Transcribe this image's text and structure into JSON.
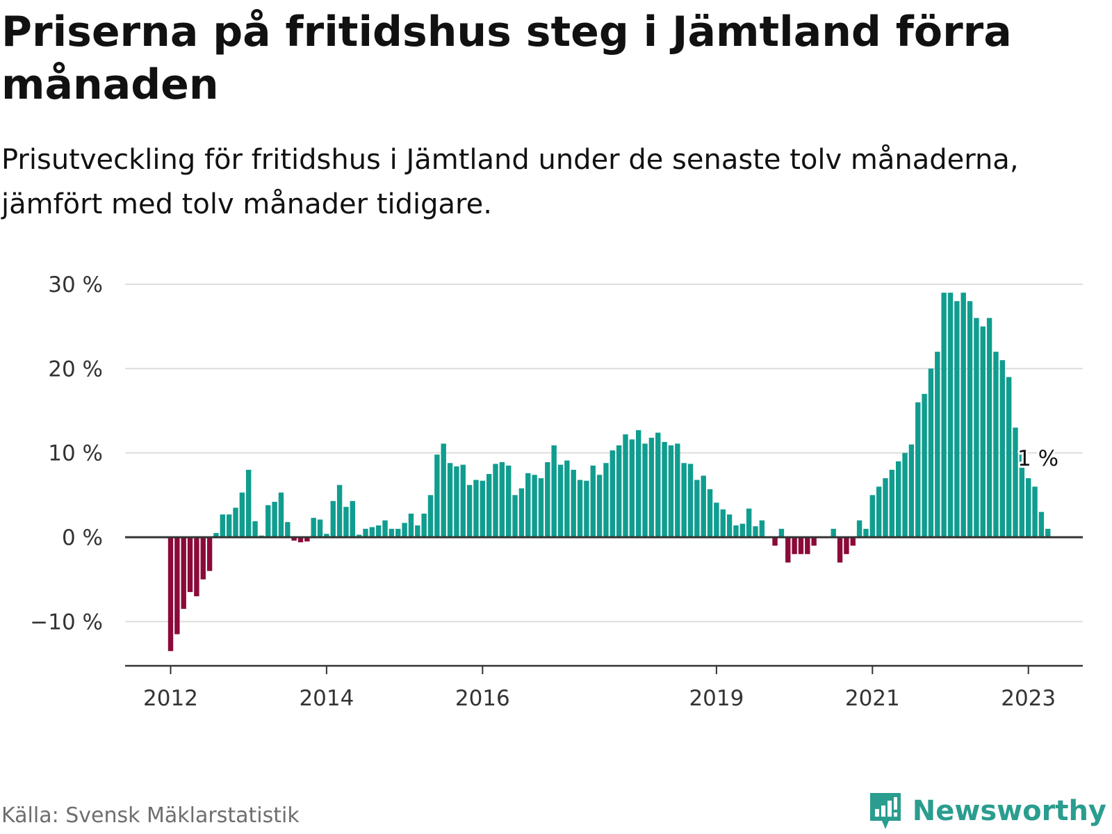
{
  "header": {
    "title": "Priserna på fritidshus steg i Jämtland förra månaden",
    "subtitle": "Prisutveckling för fritidshus i Jämtland under de senaste tolv månaderna, jämfört med tolv månader tidigare."
  },
  "footer": {
    "source": "Källa: Svensk Mäklarstatistik",
    "brand": "Newsworthy"
  },
  "colors": {
    "positive": "#109d8f",
    "negative": "#8b0a3a",
    "grid": "#dddddd",
    "axis": "#333333",
    "brand": "#2a9d8f"
  },
  "chart_data": {
    "type": "bar",
    "title": "Priserna på fritidshus steg i Jämtland förra månaden",
    "subtitle": "Prisutveckling för fritidshus i Jämtland under de senaste tolv månaderna, jämfört med tolv månader tidigare.",
    "xlabel": "",
    "ylabel": "",
    "unit": "%",
    "ylim": [
      -15,
      30
    ],
    "y_ticks": [
      30,
      20,
      10,
      0,
      -10
    ],
    "y_tick_labels": [
      "30 %",
      "20 %",
      "10 %",
      "0 %",
      "−10 %"
    ],
    "x_tick_labels": [
      "2012",
      "2014",
      "2016",
      "2019",
      "2021",
      "2023"
    ],
    "x_tick_index": [
      0,
      24,
      48,
      84,
      108,
      132
    ],
    "grid": true,
    "legend": "none",
    "annotation": {
      "text": "1 %",
      "index": 133
    },
    "values": [
      -13.5,
      -11.5,
      -8.5,
      -6.5,
      -7,
      -5,
      -4,
      0.5,
      2.7,
      2.7,
      3.5,
      5.3,
      8,
      1.9,
      0.2,
      3.8,
      4.2,
      5.3,
      1.8,
      -0.4,
      -0.6,
      -0.5,
      2.3,
      2.1,
      0.4,
      4.3,
      6.2,
      3.6,
      4.3,
      0.3,
      1,
      1.2,
      1.4,
      2,
      1,
      1,
      1.7,
      2.8,
      1.4,
      2.8,
      5,
      9.8,
      11.1,
      8.8,
      8.4,
      8.6,
      6.2,
      6.8,
      6.7,
      7.5,
      8.7,
      8.9,
      8.5,
      5,
      5.8,
      7.6,
      7.4,
      7,
      8.9,
      10.9,
      8.6,
      9.1,
      8,
      6.8,
      6.7,
      8.5,
      7.4,
      8.8,
      10.3,
      10.9,
      12.2,
      11.6,
      12.7,
      11.1,
      11.8,
      12.4,
      11.3,
      10.9,
      11.1,
      8.8,
      8.7,
      6.8,
      7.3,
      5.7,
      4.1,
      3.3,
      2.7,
      1.4,
      1.6,
      3.4,
      1.3,
      2,
      0,
      -1,
      1,
      -3,
      -2,
      -2,
      -2,
      -1,
      0,
      0,
      1,
      -3,
      -2,
      -1,
      2,
      1,
      5,
      6,
      7,
      8,
      9,
      10,
      11,
      16,
      17,
      20,
      22,
      29,
      29,
      28,
      29,
      28,
      26,
      25,
      26,
      22,
      21,
      19,
      13,
      10,
      7,
      6,
      3,
      1
    ]
  }
}
